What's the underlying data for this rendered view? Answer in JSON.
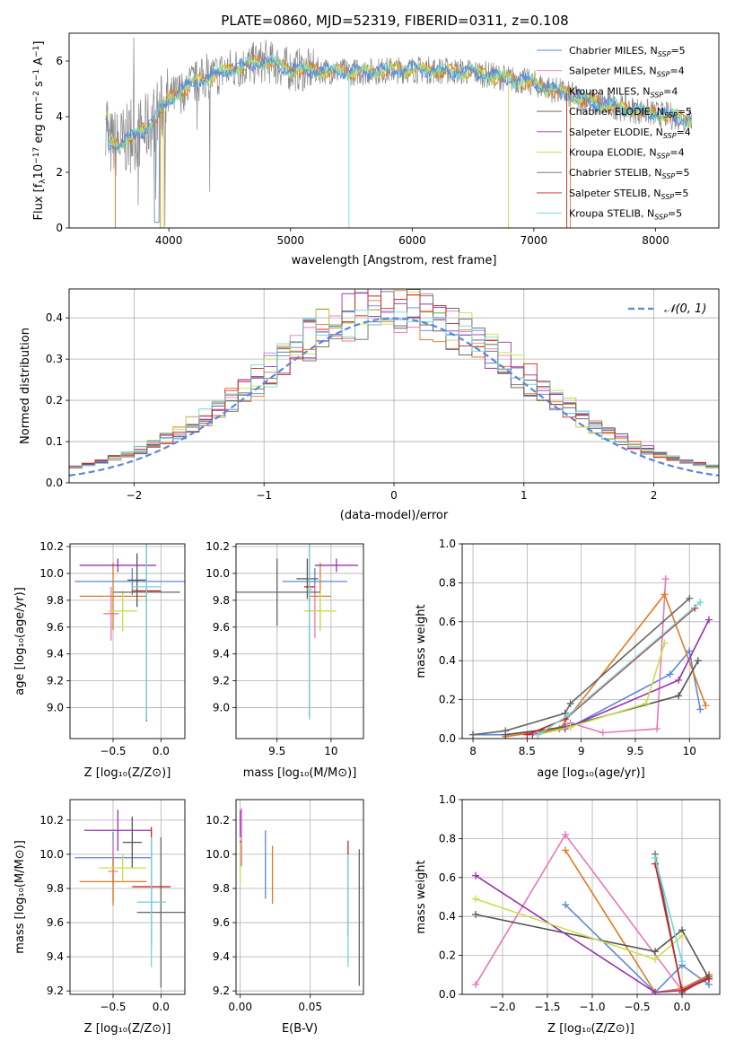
{
  "figure": {
    "title": "PLATE=0860, MJD=52319, FIBERID=0311, z=0.108"
  },
  "colors": {
    "series": [
      "#5b87d6",
      "#e878b8",
      "#e07b22",
      "#555555",
      "#9933aa",
      "#c8e04a",
      "#666666",
      "#cc2222",
      "#70d6dc"
    ],
    "gauss": "#5b87d6",
    "grid": "#b0b0b0"
  },
  "chart_data": [
    {
      "type": "line",
      "xlabel": "wavelength [Angstrom, rest frame]",
      "ylabel": "Flux [f_λ 10^-17 erg cm^-2 s^-1 A^-1]",
      "xlim": [
        3180,
        8520
      ],
      "ylim": [
        0,
        7.0
      ],
      "xticks": [
        4000,
        5000,
        6000,
        7000,
        8000
      ],
      "yticks": [
        0,
        2,
        4,
        6
      ],
      "grid": false,
      "legend_position": "top-right",
      "legend": [
        {
          "fn": "Chabrier MILES, N",
          "sub": "SSP",
          "n": "=5"
        },
        {
          "fn": "Salpeter MILES, N",
          "sub": "SSP",
          "n": "=4"
        },
        {
          "fn": "Kroupa MILES, N",
          "sub": "SSP",
          "n": "=4"
        },
        {
          "fn": "Chabrier ELODIE, N",
          "sub": "SSP",
          "n": "=5"
        },
        {
          "fn": "Salpeter ELODIE, N",
          "sub": "SSP",
          "n": "=4"
        },
        {
          "fn": "Kroupa ELODIE, N",
          "sub": "SSP",
          "n": "=4"
        },
        {
          "fn": "Chabrier STELIB, N",
          "sub": "SSP",
          "n": "=5"
        },
        {
          "fn": "Salpeter STELIB, N",
          "sub": "SSP",
          "n": "=5"
        },
        {
          "fn": "Kroupa STELIB, N",
          "sub": "SSP",
          "n": "=5"
        }
      ],
      "model_continuum": [
        [
          3500,
          3.0
        ],
        [
          3600,
          3.05
        ],
        [
          3800,
          3.5
        ],
        [
          4000,
          4.6
        ],
        [
          4200,
          5.2
        ],
        [
          4500,
          5.7
        ],
        [
          4800,
          6.0
        ],
        [
          5000,
          5.7
        ],
        [
          5500,
          5.6
        ],
        [
          6000,
          5.7
        ],
        [
          6500,
          5.6
        ],
        [
          7000,
          5.2
        ],
        [
          7500,
          4.5
        ],
        [
          8000,
          4.1
        ],
        [
          8300,
          3.9
        ]
      ]
    },
    {
      "type": "histogram",
      "xlabel": "(data-model)/error",
      "ylabel": "Normed distribution",
      "xlim": [
        -2.5,
        2.5
      ],
      "ylim": [
        0,
        0.47
      ],
      "xticks": [
        -2,
        -1,
        0,
        1,
        2
      ],
      "yticks": [
        0.0,
        0.1,
        0.2,
        0.3,
        0.4
      ],
      "grid": true,
      "legend_label": "𝒩(0, 1)",
      "legend_position": "top-right",
      "bin_width": 0.1,
      "bin_start": -2.5
    },
    {
      "type": "errorbar",
      "xlabel": "Z [log₁₀(Z/Z⊙)]",
      "ylabel": "age  [log₁₀(age/yr)]",
      "xlim": [
        -0.95,
        0.25
      ],
      "ylim": [
        8.77,
        10.22
      ],
      "xticks": [
        -0.5,
        0.0
      ],
      "xticklabels": [
        "−0.5",
        "0.0"
      ],
      "yticks": [
        9.0,
        9.2,
        9.4,
        9.6,
        9.8,
        10.0,
        10.2
      ],
      "grid": true,
      "points": [
        {
          "x": -0.3,
          "xerr": 0.6,
          "y": 9.94,
          "yerr": 0.1
        },
        {
          "x": -0.52,
          "xerr": 0.08,
          "y": 9.7,
          "yerr": 0.2
        },
        {
          "x": -0.5,
          "xerr": 0.35,
          "y": 9.83,
          "yerr": 0.25
        },
        {
          "x": -0.25,
          "xerr": 0.1,
          "y": 9.95,
          "yerr": 0.2
        },
        {
          "x": -0.45,
          "xerr": 0.4,
          "y": 10.06,
          "yerr": 0.05
        },
        {
          "x": -0.4,
          "xerr": 0.15,
          "y": 9.72,
          "yerr": 0.15
        },
        {
          "x": -0.15,
          "xerr": 0.35,
          "y": 9.86,
          "yerr": 0.1
        },
        {
          "x": -0.15,
          "xerr": 0.15,
          "y": 9.87,
          "yerr": 0.97
        },
        {
          "x": -0.15,
          "xerr": 0.15,
          "y": 9.9,
          "yerr": 0.99
        }
      ]
    },
    {
      "type": "errorbar",
      "xlabel": "mass [log₁₀(M/M⊙)]",
      "ylabel": "",
      "xlim": [
        9.12,
        10.3
      ],
      "ylim": [
        8.77,
        10.22
      ],
      "xticks": [
        9.5,
        10.0
      ],
      "yticks": [
        9.0,
        9.2,
        9.4,
        9.6,
        9.8,
        10.0,
        10.2
      ],
      "grid": true,
      "points": [
        {
          "x": 9.85,
          "xerr": 0.3,
          "y": 9.94,
          "yerr": 0.1
        },
        {
          "x": 9.85,
          "xerr": 0.05,
          "y": 9.72,
          "yerr": 0.2
        },
        {
          "x": 9.9,
          "xerr": 0.1,
          "y": 9.83,
          "yerr": 0.25
        },
        {
          "x": 9.78,
          "xerr": 0.1,
          "y": 9.96,
          "yerr": 0.15
        },
        {
          "x": 10.05,
          "xerr": 0.2,
          "y": 10.06,
          "yerr": 0.05
        },
        {
          "x": 9.9,
          "xerr": 0.15,
          "y": 9.72,
          "yerr": 0.15
        },
        {
          "x": 9.5,
          "xerr": 0.4,
          "y": 9.86,
          "yerr": 0.25
        },
        {
          "x": 9.8,
          "xerr": 0.05,
          "y": 9.9,
          "yerr": 0.97
        },
        {
          "x": 9.8,
          "xerr": 0.03,
          "y": 9.88,
          "yerr": 0.97
        }
      ]
    },
    {
      "type": "line",
      "xlabel": "age  [log₁₀(age/yr)]",
      "ylabel": "mass weight",
      "xlim": [
        7.9,
        10.28
      ],
      "ylim": [
        0,
        1.0
      ],
      "xticks": [
        8.0,
        8.5,
        9.0,
        9.5,
        10.0
      ],
      "yticks": [
        0.0,
        0.2,
        0.4,
        0.6,
        0.8,
        1.0
      ],
      "grid": true,
      "series": [
        {
          "x": [
            8.0,
            8.3,
            8.9,
            9.82,
            10.0,
            10.1
          ],
          "y": [
            0.02,
            0.02,
            0.06,
            0.33,
            0.45,
            0.15
          ]
        },
        {
          "x": [
            8.6,
            8.9,
            9.2,
            9.7,
            9.78
          ],
          "y": [
            0.02,
            0.08,
            0.03,
            0.05,
            0.82
          ]
        },
        {
          "x": [
            8.3,
            8.8,
            9.77,
            10.15
          ],
          "y": [
            0.01,
            0.05,
            0.74,
            0.17
          ]
        },
        {
          "x": [
            8.3,
            8.85,
            9.9,
            10.08
          ],
          "y": [
            0.02,
            0.06,
            0.22,
            0.4
          ]
        },
        {
          "x": [
            8.55,
            8.85,
            9.9,
            10.18
          ],
          "y": [
            0.02,
            0.05,
            0.3,
            0.61
          ]
        },
        {
          "x": [
            8.6,
            8.9,
            9.6,
            9.77
          ],
          "y": [
            0.02,
            0.06,
            0.18,
            0.49
          ]
        },
        {
          "x": [
            8.0,
            8.3,
            8.85,
            8.9,
            10.0
          ],
          "y": [
            0.02,
            0.04,
            0.13,
            0.18,
            0.72
          ]
        },
        {
          "x": [
            8.5,
            8.85,
            10.05
          ],
          "y": [
            0.02,
            0.1,
            0.67
          ]
        },
        {
          "x": [
            8.6,
            8.88,
            10.1
          ],
          "y": [
            0.02,
            0.12,
            0.7
          ]
        }
      ]
    },
    {
      "type": "errorbar",
      "xlabel": "Z [log₁₀(Z/Z⊙)]",
      "ylabel": "mass [log₁₀(M/M⊙)]",
      "xlim": [
        -0.95,
        0.25
      ],
      "ylim": [
        9.18,
        10.32
      ],
      "xticks": [
        -0.5,
        0.0
      ],
      "xticklabels": [
        "−0.5",
        "0.0"
      ],
      "yticks": [
        9.2,
        9.4,
        9.6,
        9.8,
        10.0,
        10.2
      ],
      "grid": true,
      "points": [
        {
          "x": -0.5,
          "xerr": 0.4,
          "y": 9.98,
          "yerr": 0.15
        },
        {
          "x": -0.5,
          "xerr": 0.05,
          "y": 9.9,
          "yerr": 0.18
        },
        {
          "x": -0.5,
          "xerr": 0.35,
          "y": 9.84,
          "yerr": 0.14
        },
        {
          "x": -0.3,
          "xerr": 0.1,
          "y": 10.07,
          "yerr": 0.15
        },
        {
          "x": -0.45,
          "xerr": 0.35,
          "y": 10.14,
          "yerr": 0.12
        },
        {
          "x": -0.4,
          "xerr": 0.25,
          "y": 9.92,
          "yerr": 0.08
        },
        {
          "x": 0.0,
          "xerr": 0.25,
          "y": 9.66,
          "yerr": 0.44
        },
        {
          "x": -0.1,
          "xerr": 0.2,
          "y": 9.81,
          "yerr": 0.35
        },
        {
          "x": -0.1,
          "xerr": 0.15,
          "y": 9.72,
          "yerr": 0.38
        }
      ]
    },
    {
      "type": "errorbar",
      "xlabel": "E(B-V)",
      "ylabel": "",
      "xlim": [
        -0.003,
        0.088
      ],
      "ylim": [
        9.18,
        10.32
      ],
      "xticks": [
        0.0,
        0.05
      ],
      "xticklabels": [
        "0.00",
        "0.05"
      ],
      "yticks": [
        9.2,
        9.4,
        9.6,
        9.8,
        10.0,
        10.2
      ],
      "grid": true,
      "points": [
        {
          "x": 0.018,
          "xerr": 0,
          "y": 9.94,
          "yerr": 0.2
        },
        {
          "x": 0.001,
          "xerr": 0,
          "y": 10.1,
          "yerr": 0.17
        },
        {
          "x": 0.023,
          "xerr": 0,
          "y": 9.88,
          "yerr": 0.17
        },
        {
          "x": 0.0,
          "xerr": 0,
          "y": 10.0,
          "yerr": 0.08
        },
        {
          "x": 0.0,
          "xerr": 0,
          "y": 10.18,
          "yerr": 0.08
        },
        {
          "x": 0.0,
          "xerr": 0,
          "y": 9.95,
          "yerr": 0.12
        },
        {
          "x": 0.085,
          "xerr": 0,
          "y": 9.63,
          "yerr": 0.4
        },
        {
          "x": 0.077,
          "xerr": 0,
          "y": 9.8,
          "yerr": 0.28
        },
        {
          "x": 0.077,
          "xerr": 0,
          "y": 9.67,
          "yerr": 0.33
        }
      ]
    },
    {
      "type": "line",
      "xlabel": "Z [log₁₀(Z/Z⊙)]",
      "ylabel": "mass weight",
      "xlim": [
        -2.45,
        0.42
      ],
      "ylim": [
        0,
        1.0
      ],
      "xticks": [
        -2.0,
        -1.5,
        -1.0,
        -0.5,
        0.0
      ],
      "xticklabels": [
        "−2.0",
        "−1.5",
        "−1.0",
        "−0.5",
        "0.0"
      ],
      "yticks": [
        0.0,
        0.2,
        0.4,
        0.6,
        0.8,
        1.0
      ],
      "grid": true,
      "series": [
        {
          "x": [
            -1.3,
            -0.3,
            0.0,
            0.3
          ],
          "y": [
            0.46,
            0.01,
            0.15,
            0.05
          ]
        },
        {
          "x": [
            -2.3,
            -1.3,
            0.0,
            0.3
          ],
          "y": [
            0.05,
            0.82,
            0.02,
            0.1
          ]
        },
        {
          "x": [
            -1.3,
            -0.3,
            0.0,
            0.3
          ],
          "y": [
            0.74,
            0.01,
            0.03,
            0.1
          ]
        },
        {
          "x": [
            -2.3,
            -0.3,
            0.0,
            0.3
          ],
          "y": [
            0.41,
            0.22,
            0.33,
            0.08
          ]
        },
        {
          "x": [
            -2.3,
            -0.3,
            0.0,
            0.3
          ],
          "y": [
            0.61,
            0.01,
            0.02,
            0.09
          ]
        },
        {
          "x": [
            -2.3,
            -0.3,
            0.0
          ],
          "y": [
            0.49,
            0.18,
            0.3
          ]
        },
        {
          "x": [
            -0.3,
            0.0,
            0.3
          ],
          "y": [
            0.72,
            0.01,
            0.09
          ]
        },
        {
          "x": [
            -0.3,
            0.0,
            0.3
          ],
          "y": [
            0.67,
            0.02,
            0.08
          ]
        },
        {
          "x": [
            -0.3,
            0.0
          ],
          "y": [
            0.7,
            0.17
          ]
        }
      ]
    }
  ]
}
